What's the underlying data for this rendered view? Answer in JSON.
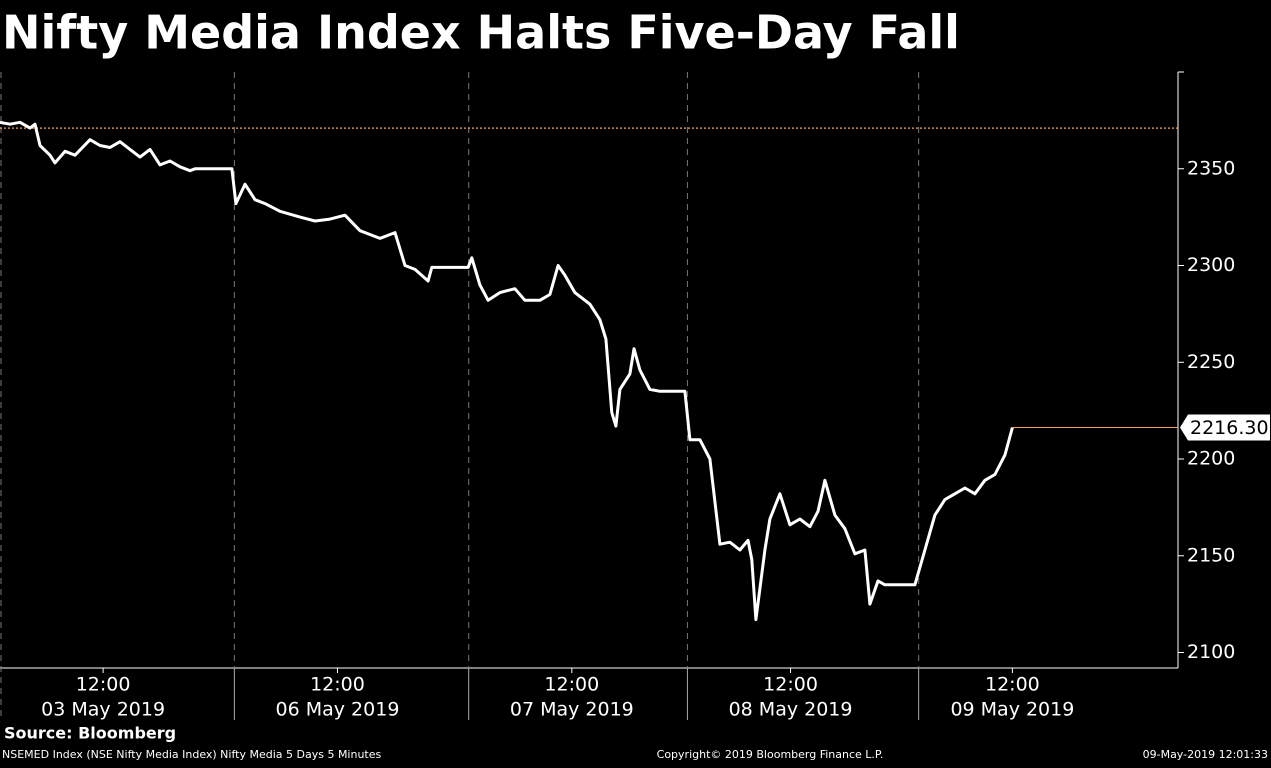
{
  "chart_data": {
    "type": "line",
    "title": "Nifty Media Index Halts Five-Day Fall",
    "source": "Source: Bloomberg",
    "footer_left": "NSEMED Index (NSE Nifty Media Index) Nifty Media 5 Days 5 Minutes",
    "footer_center": "Copyright© 2019 Bloomberg Finance L.P.",
    "footer_right": "09-May-2019 12:01:33",
    "color": "#ffffff",
    "x": [
      0,
      3.2,
      6.4,
      9.6,
      11.2,
      12.8,
      16,
      17.6,
      20.8,
      24,
      28.8,
      32,
      35.2,
      38.4,
      41.6,
      44.8,
      48,
      51.2,
      54.4,
      57.6,
      60.8,
      62.4,
      74.2,
      75.5,
      78.4,
      81.6,
      84.8,
      89.6,
      96,
      100.8,
      105.6,
      110.4,
      115.2,
      121.6,
      126.4,
      129.6,
      132.8,
      137,
      138.2,
      149.8,
      151,
      153.6,
      156.2,
      160,
      164.8,
      168,
      172.8,
      176,
      178.6,
      180.8,
      184,
      188.8,
      192,
      193.9,
      195.8,
      197.1,
      198.4,
      201.6,
      202.9,
      204.8,
      208,
      211.2,
      219.2,
      220.8,
      224,
      227.2,
      230.4,
      233.6,
      236.8,
      239.4,
      240.6,
      241.9,
      244.8,
      246.4,
      249.6,
      252.8,
      256,
      259.2,
      261.8,
      264,
      267.2,
      270.4,
      273.6,
      276.8,
      278.4,
      281,
      283.2,
      292.8,
      296,
      299.2,
      302.4,
      305.6,
      308.8,
      312,
      315.2,
      318.4,
      321.6,
      324
    ],
    "values": [
      2374,
      2373,
      2374,
      2371,
      2373,
      2362,
      2357,
      2353,
      2359,
      2357,
      2365,
      2362,
      2361,
      2364,
      2360,
      2356,
      2360,
      2352,
      2354,
      2351,
      2349,
      2350,
      2350,
      2332,
      2342,
      2334,
      2332,
      2328,
      2325,
      2323,
      2324,
      2326,
      2318,
      2314,
      2317,
      2300,
      2298,
      2292,
      2299,
      2299,
      2304,
      2290,
      2282,
      2286,
      2288,
      2282,
      2282,
      2285,
      2300,
      2295,
      2286,
      2280,
      2272,
      2262,
      2224,
      2217,
      2236,
      2244,
      2257,
      2246,
      2236,
      2235,
      2235,
      2210,
      2210,
      2200,
      2156,
      2157,
      2153,
      2158,
      2148,
      2117,
      2153,
      2169,
      2182,
      2166,
      2169,
      2165,
      2173,
      2189,
      2171,
      2164,
      2151,
      2153,
      2125,
      2137,
      2135,
      2135,
      2153,
      2171,
      2179,
      2182,
      2185,
      2182,
      2189,
      2192,
      2202,
      2216.3
    ],
    "xlim": [
      0,
      377
    ],
    "xticks": [
      {
        "value": 33,
        "label": "12:00"
      },
      {
        "value": 108,
        "label": "12:00"
      },
      {
        "value": 183,
        "label": "12:00"
      },
      {
        "value": 253,
        "label": "12:00"
      },
      {
        "value": 324,
        "label": "12:00"
      }
    ],
    "x_day_labels": [
      "03 May 2019",
      "06 May 2019",
      "07 May 2019",
      "08 May 2019",
      "09 May 2019"
    ],
    "session_breaks": [
      75,
      150,
      220,
      294
    ],
    "ylim": [
      2092,
      2400
    ],
    "yticks": [
      2100,
      2150,
      2200,
      2250,
      2300,
      2350
    ],
    "reference_line": 2371,
    "reference_color": "#f4a460",
    "last_value_label": {
      "value": 2216.3,
      "label": "2216.30"
    }
  }
}
